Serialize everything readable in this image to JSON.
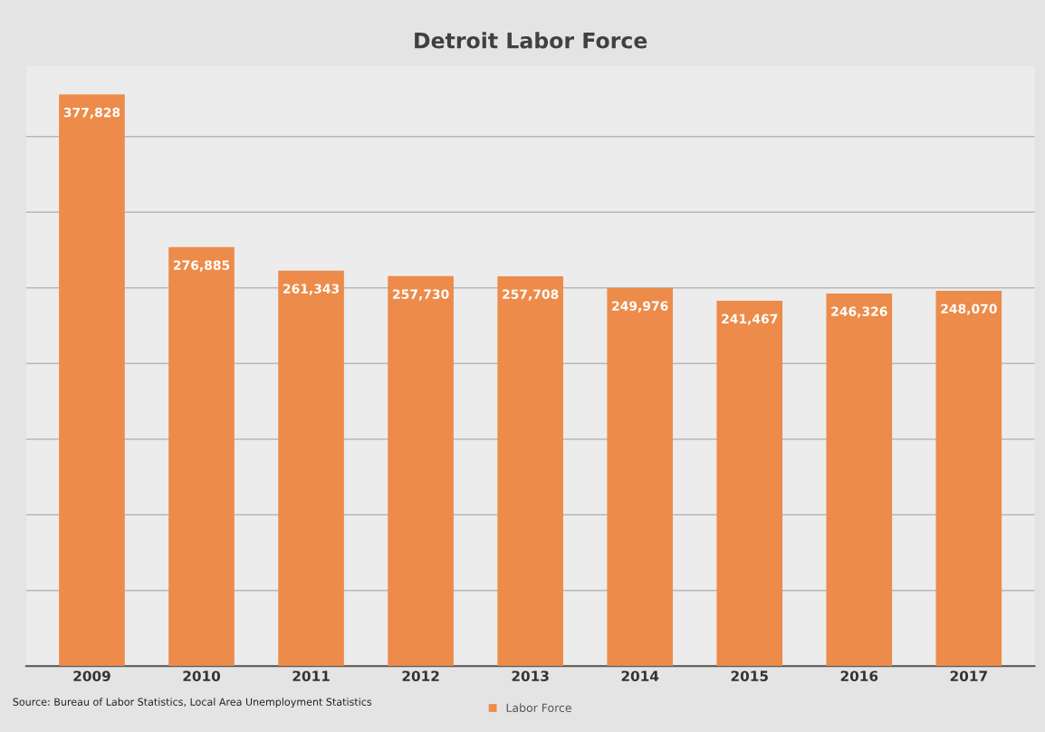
{
  "chart_data": {
    "type": "bar",
    "title": "Detroit Labor Force",
    "categories": [
      "2009",
      "2010",
      "2011",
      "2012",
      "2013",
      "2014",
      "2015",
      "2016",
      "2017"
    ],
    "series": [
      {
        "name": "Labor Force",
        "color": "#ed8b4a",
        "values": [
          377828,
          276885,
          261343,
          257730,
          257708,
          249976,
          241467,
          246326,
          248070
        ],
        "value_labels": [
          "377,828",
          "276,885",
          "261,343",
          "257,730",
          "257,708",
          "249,976",
          "241,467",
          "246,326",
          "248,070"
        ]
      }
    ],
    "tick_labels": "x",
    "grid": "y",
    "legend": "bottom",
    "annotations": [
      "Source: Bureau of Labor Statistics, Local Area Unemployment Statistics"
    ]
  }
}
